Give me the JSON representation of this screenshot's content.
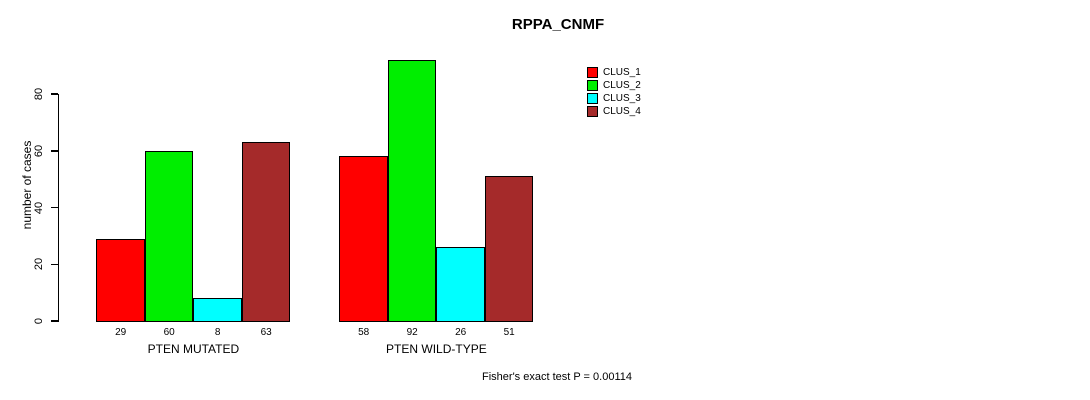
{
  "chart_data": {
    "type": "bar",
    "title": "RPPA_CNMF",
    "ylabel": "number of cases",
    "xlabel": "",
    "categories": [
      "PTEN MUTATED",
      "PTEN WILD-TYPE"
    ],
    "series": [
      {
        "name": "CLUS_1",
        "color": "#FF0000",
        "values": [
          29,
          58
        ]
      },
      {
        "name": "CLUS_2",
        "color": "#00EE00",
        "values": [
          60,
          92
        ]
      },
      {
        "name": "CLUS_3",
        "color": "#00FFFF",
        "values": [
          8,
          26
        ]
      },
      {
        "name": "CLUS_4",
        "color": "#A52A2A",
        "values": [
          63,
          51
        ]
      }
    ],
    "bar_value_labels": [
      [
        "29",
        "60",
        "8",
        "63"
      ],
      [
        "58",
        "92",
        "26",
        "51"
      ]
    ],
    "yticks": [
      0,
      20,
      40,
      60,
      80
    ],
    "ylim": [
      0,
      95
    ],
    "grid": false,
    "legend_position": "top-right",
    "footer": "Fisher's exact test P = 0.00114"
  }
}
